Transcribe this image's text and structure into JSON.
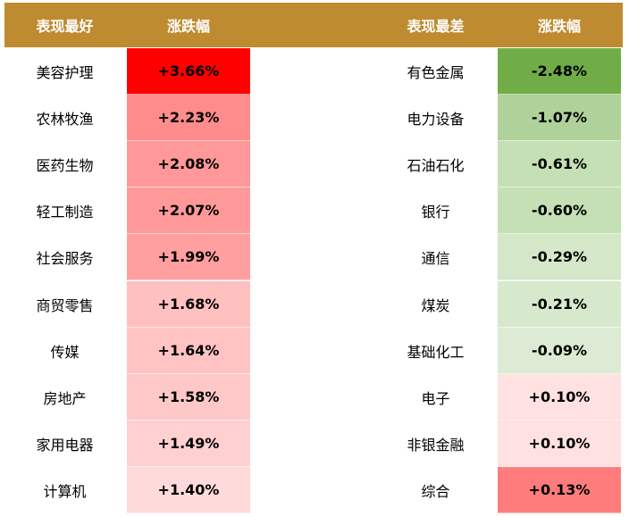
{
  "header": {
    "best": "表现最好",
    "best_change": "涨跌幅",
    "worst": "表现最差",
    "worst_change": "涨跌幅",
    "color": "#BF8B30"
  },
  "best": [
    {
      "name": "美容护理",
      "change": "+3.66%",
      "color": "#FF0000"
    },
    {
      "name": "农林牧渔",
      "change": "+2.23%",
      "color": "#FF8C8C"
    },
    {
      "name": "医药生物",
      "change": "+2.08%",
      "color": "#FF9898"
    },
    {
      "name": "轻工制造",
      "change": "+2.07%",
      "color": "#FF9999"
    },
    {
      "name": "社会服务",
      "change": "+1.99%",
      "color": "#FF9F9F"
    },
    {
      "name": "商贸零售",
      "change": "+1.68%",
      "color": "#FFC0C0"
    },
    {
      "name": "传媒",
      "change": "+1.64%",
      "color": "#FFC3C3"
    },
    {
      "name": "房地产",
      "change": "+1.58%",
      "color": "#FFC8C8"
    },
    {
      "name": "家用电器",
      "change": "+1.49%",
      "color": "#FFD0D0"
    },
    {
      "name": "计算机",
      "change": "+1.40%",
      "color": "#FFDADA"
    }
  ],
  "worst": [
    {
      "name": "有色金属",
      "change": "-2.48%",
      "color": "#70AD47"
    },
    {
      "name": "电力设备",
      "change": "-1.07%",
      "color": "#B0D29A"
    },
    {
      "name": "石油石化",
      "change": "-0.61%",
      "color": "#C5E0B4"
    },
    {
      "name": "银行",
      "change": "-0.60%",
      "color": "#C5E0B4"
    },
    {
      "name": "通信",
      "change": "-0.29%",
      "color": "#D4E7C8"
    },
    {
      "name": "煤炭",
      "change": "-0.21%",
      "color": "#D7E9CC"
    },
    {
      "name": "基础化工",
      "change": "-0.09%",
      "color": "#DDEBD4"
    },
    {
      "name": "电子",
      "change": "+0.10%",
      "color": "#FFE1E1"
    },
    {
      "name": "非银金融",
      "change": "+0.10%",
      "color": "#FFE1E1"
    },
    {
      "name": "综合",
      "change": "+0.13%",
      "color": "#FF7C7C"
    }
  ]
}
